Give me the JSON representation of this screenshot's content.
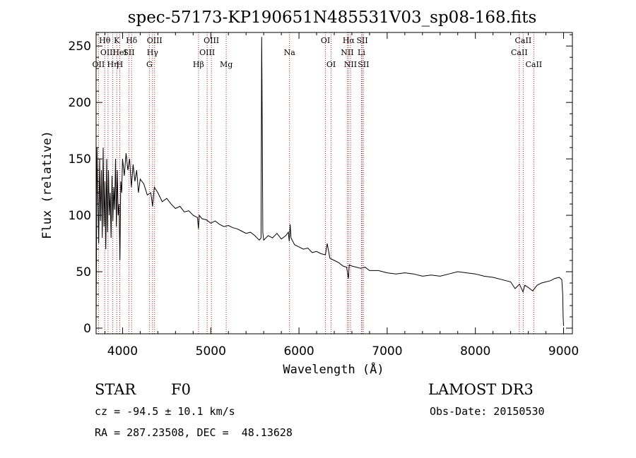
{
  "chart_data": {
    "type": "line",
    "title": "spec-57173-KP190651N485531V03_sp08-168.fits",
    "xlabel": "Wavelength (Å)",
    "ylabel": "Flux (relative)",
    "xlim": [
      3700,
      9100
    ],
    "ylim": [
      -5,
      262
    ],
    "xticks": [
      4000,
      5000,
      6000,
      7000,
      8000,
      9000
    ],
    "yticks": [
      0,
      50,
      100,
      150,
      200,
      250
    ],
    "series": [
      {
        "name": "flux",
        "x": [
          3700,
          3710,
          3720,
          3730,
          3740,
          3750,
          3760,
          3770,
          3780,
          3790,
          3800,
          3810,
          3820,
          3830,
          3840,
          3850,
          3860,
          3870,
          3880,
          3890,
          3900,
          3910,
          3920,
          3930,
          3940,
          3950,
          3960,
          3970,
          3980,
          3990,
          4000,
          4020,
          4040,
          4060,
          4080,
          4100,
          4120,
          4140,
          4160,
          4180,
          4200,
          4240,
          4280,
          4320,
          4340,
          4360,
          4400,
          4450,
          4500,
          4550,
          4600,
          4650,
          4700,
          4750,
          4800,
          4850,
          4860,
          4870,
          4900,
          4950,
          5000,
          5050,
          5100,
          5150,
          5200,
          5250,
          5300,
          5350,
          5400,
          5450,
          5500,
          5550,
          5570,
          5577,
          5580,
          5590,
          5600,
          5650,
          5700,
          5750,
          5800,
          5850,
          5880,
          5890,
          5900,
          5910,
          5950,
          6000,
          6050,
          6100,
          6150,
          6200,
          6250,
          6300,
          6320,
          6350,
          6400,
          6450,
          6500,
          6540,
          6560,
          6570,
          6600,
          6650,
          6700,
          6750,
          6800,
          6900,
          7000,
          7100,
          7200,
          7300,
          7400,
          7500,
          7600,
          7700,
          7800,
          7900,
          8000,
          8100,
          8200,
          8300,
          8400,
          8450,
          8500,
          8540,
          8560,
          8600,
          8650,
          8700,
          8750,
          8800,
          8850,
          8900,
          8950,
          8980,
          8990,
          8995,
          9000
        ],
        "values": [
          2,
          160,
          115,
          75,
          150,
          95,
          140,
          80,
          160,
          90,
          130,
          70,
          150,
          85,
          140,
          100,
          120,
          80,
          135,
          95,
          125,
          105,
          150,
          90,
          140,
          100,
          110,
          60,
          130,
          120,
          150,
          135,
          155,
          140,
          150,
          125,
          145,
          130,
          140,
          120,
          132,
          128,
          118,
          120,
          108,
          125,
          120,
          112,
          115,
          110,
          106,
          108,
          103,
          104,
          100,
          98,
          88,
          100,
          97,
          96,
          93,
          95,
          92,
          90,
          91,
          89,
          88,
          86,
          84,
          85,
          82,
          78,
          80,
          258,
          220,
          85,
          78,
          82,
          80,
          84,
          79,
          82,
          85,
          77,
          92,
          80,
          74,
          72,
          70,
          71,
          67,
          68,
          66,
          65,
          75,
          62,
          60,
          58,
          55,
          54,
          44,
          56,
          55,
          54,
          53,
          54,
          51,
          51,
          49,
          48,
          49,
          48,
          46,
          47,
          46,
          48,
          50,
          49,
          48,
          46,
          45,
          43,
          41,
          35,
          39,
          32,
          38,
          36,
          33,
          38,
          40,
          41,
          42,
          44,
          45,
          43,
          30,
          10,
          2
        ]
      }
    ],
    "line_markers": [
      {
        "label": "OII",
        "wavelength": 3727,
        "row": 2
      },
      {
        "label": "Hθ",
        "wavelength": 3798,
        "row": 0
      },
      {
        "label": "OIII",
        "wavelength": 3835,
        "row": 1
      },
      {
        "label": "Hη",
        "wavelength": 3889,
        "row": 2
      },
      {
        "label": "K",
        "wavelength": 3934,
        "row": 0
      },
      {
        "label": "HeI",
        "wavelength": 3969,
        "row": 1
      },
      {
        "label": "H",
        "wavelength": 3968,
        "row": 2
      },
      {
        "label": "SII",
        "wavelength": 4072,
        "row": 1
      },
      {
        "label": "Hδ",
        "wavelength": 4102,
        "row": 0
      },
      {
        "label": "OIII",
        "wavelength": 4363,
        "row": 0
      },
      {
        "label": "Hγ",
        "wavelength": 4340,
        "row": 1
      },
      {
        "label": "G",
        "wavelength": 4304,
        "row": 2
      },
      {
        "label": "Hβ",
        "wavelength": 4861,
        "row": 2
      },
      {
        "label": "OIII",
        "wavelength": 5007,
        "row": 0
      },
      {
        "label": "OIII",
        "wavelength": 4959,
        "row": 1
      },
      {
        "label": "Mg",
        "wavelength": 5175,
        "row": 2
      },
      {
        "label": "Na",
        "wavelength": 5893,
        "row": 1
      },
      {
        "label": "OI",
        "wavelength": 6300,
        "row": 0
      },
      {
        "label": "OI",
        "wavelength": 6364,
        "row": 2
      },
      {
        "label": "Hα",
        "wavelength": 6563,
        "row": 0
      },
      {
        "label": "SII",
        "wavelength": 6717,
        "row": 0
      },
      {
        "label": "NII",
        "wavelength": 6548,
        "row": 1
      },
      {
        "label": "Li",
        "wavelength": 6708,
        "row": 1
      },
      {
        "label": "NII",
        "wavelength": 6584,
        "row": 2
      },
      {
        "label": "SII",
        "wavelength": 6731,
        "row": 2
      },
      {
        "label": "CaII",
        "wavelength": 8542,
        "row": 0
      },
      {
        "label": "CaII",
        "wavelength": 8498,
        "row": 1
      },
      {
        "label": "CaII",
        "wavelength": 8662,
        "row": 2
      }
    ],
    "grid": false,
    "legend": "none"
  },
  "info": {
    "object_class": "STAR",
    "subclass": "F0",
    "survey": "LAMOST DR3",
    "redshift_text": "cz = -94.5 ± 10.1 km/s",
    "obs_date_text": "Obs-Date: 20150530",
    "coords_text": "RA = 287.23508, DEC =  48.13628"
  }
}
